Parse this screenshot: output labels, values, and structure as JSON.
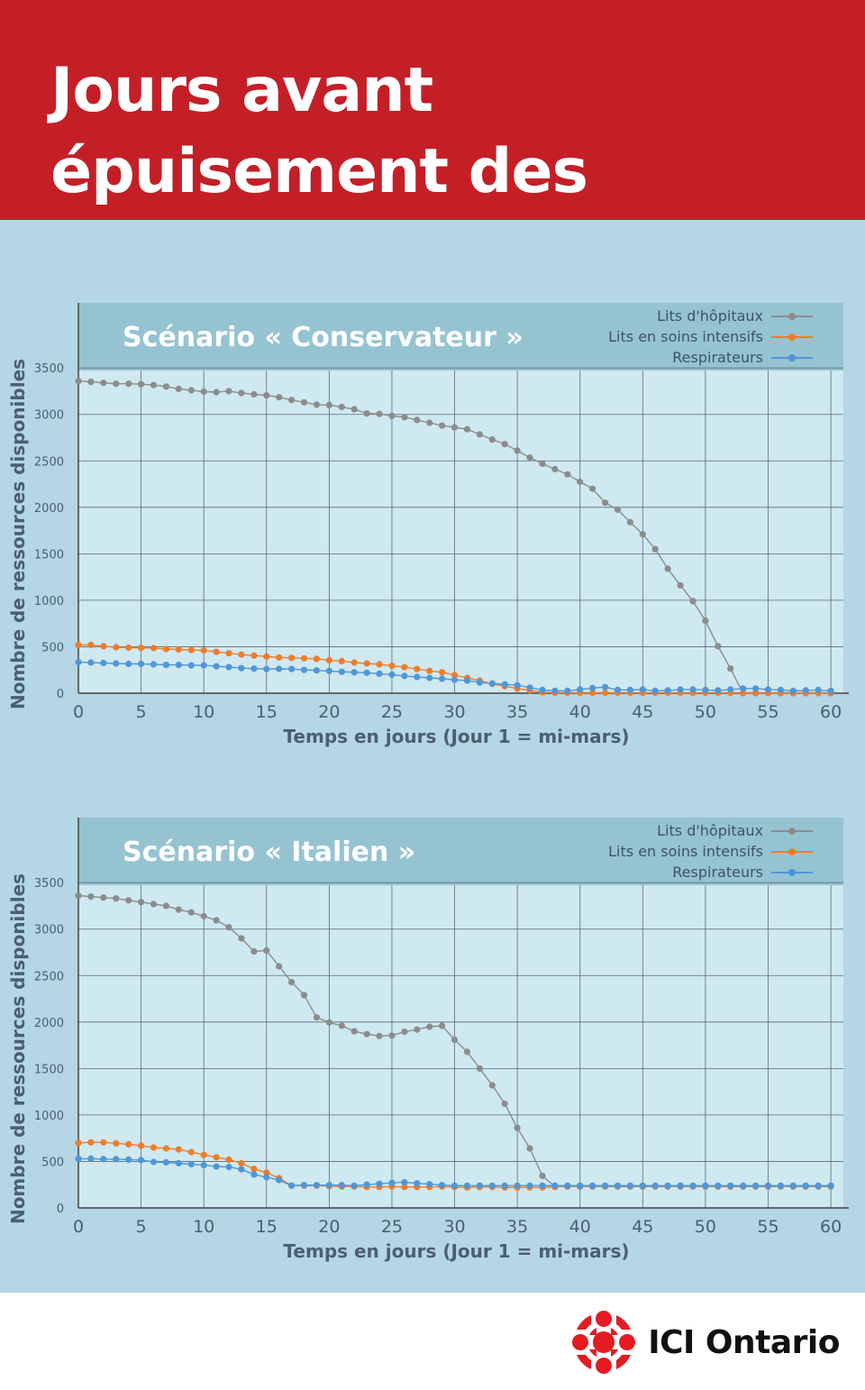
{
  "header": {
    "title": "Jours avant épuisement des ressources"
  },
  "colors": {
    "header_bg": "#c41f27",
    "page_bg": "#b4d6e5",
    "plot_bg": "#cfe9f1",
    "title_band": "#96c3d1",
    "hospital": "#8c8c8c",
    "icu": "#f07c2a",
    "ventilators": "#4e97d8",
    "axis_text": "#4a5f70"
  },
  "logo": {
    "text": "ICI Ontario",
    "icon": "radio-canada-gem-icon"
  },
  "chart_data": [
    {
      "type": "line",
      "title": "Scénario « Conservateur »",
      "xlabel": "Temps en jours (Jour 1 = mi-mars)",
      "ylabel": "Nombre de ressources disponibles",
      "xlim": [
        0,
        61
      ],
      "ylim": [
        0,
        4200
      ],
      "xticks": [
        0,
        5,
        10,
        15,
        20,
        25,
        30,
        35,
        40,
        45,
        50,
        55,
        60
      ],
      "yticks": [
        0,
        500,
        1000,
        1500,
        2000,
        2500,
        3000,
        3500
      ],
      "grid": true,
      "legend": "top-right",
      "x": [
        0,
        1,
        2,
        3,
        4,
        5,
        6,
        7,
        8,
        9,
        10,
        11,
        12,
        13,
        14,
        15,
        16,
        17,
        18,
        19,
        20,
        21,
        22,
        23,
        24,
        25,
        26,
        27,
        28,
        29,
        30,
        31,
        32,
        33,
        34,
        35,
        36,
        37,
        38,
        39,
        40,
        41,
        42,
        43,
        44,
        45,
        46,
        47,
        48,
        49,
        50,
        51,
        52,
        53,
        54,
        55,
        56,
        57,
        58,
        59,
        60
      ],
      "series": [
        {
          "name": "Lits d'hôpitaux",
          "color": "#8c8c8c",
          "values": [
            3360,
            3350,
            3340,
            3330,
            3330,
            3325,
            3315,
            3300,
            3275,
            3260,
            3245,
            3240,
            3250,
            3230,
            3215,
            3205,
            3185,
            3155,
            3130,
            3105,
            3100,
            3080,
            3055,
            3010,
            3005,
            2985,
            2970,
            2940,
            2910,
            2880,
            2860,
            2840,
            2785,
            2730,
            2680,
            2610,
            2535,
            2470,
            2410,
            2355,
            2275,
            2200,
            2050,
            1975,
            1840,
            1710,
            1550,
            1340,
            1160,
            990,
            780,
            505,
            265,
            0,
            0,
            0,
            0,
            0,
            0,
            0,
            0
          ]
        },
        {
          "name": "Lits en soins intensifs",
          "color": "#f07c2a",
          "values": [
            520,
            520,
            505,
            495,
            490,
            488,
            485,
            475,
            470,
            465,
            460,
            445,
            430,
            415,
            405,
            395,
            385,
            380,
            375,
            370,
            355,
            345,
            330,
            320,
            310,
            295,
            280,
            260,
            240,
            225,
            195,
            165,
            135,
            100,
            75,
            50,
            30,
            10,
            5,
            5,
            5,
            5,
            5,
            5,
            5,
            5,
            5,
            5,
            5,
            5,
            5,
            5,
            5,
            5,
            5,
            5,
            5,
            5,
            5,
            5,
            5
          ]
        },
        {
          "name": "Respirateurs",
          "color": "#4e97d8",
          "values": [
            335,
            330,
            325,
            320,
            315,
            315,
            310,
            305,
            305,
            300,
            300,
            290,
            280,
            270,
            265,
            260,
            262,
            260,
            250,
            245,
            240,
            230,
            225,
            220,
            210,
            200,
            185,
            175,
            165,
            155,
            145,
            135,
            115,
            105,
            95,
            85,
            60,
            35,
            25,
            25,
            40,
            55,
            65,
            35,
            35,
            40,
            25,
            30,
            40,
            40,
            35,
            30,
            40,
            50,
            50,
            40,
            35,
            25,
            30,
            35,
            25
          ]
        }
      ]
    },
    {
      "type": "line",
      "title": "Scénario « Italien »",
      "xlabel": "Temps en jours (Jour 1 = mi-mars)",
      "ylabel": "Nombre de ressources disponibles",
      "xlim": [
        0,
        61
      ],
      "ylim": [
        0,
        4200
      ],
      "xticks": [
        0,
        5,
        10,
        15,
        20,
        25,
        30,
        35,
        40,
        45,
        50,
        55,
        60
      ],
      "yticks": [
        0,
        500,
        1000,
        1500,
        2000,
        2500,
        3000,
        3500
      ],
      "grid": true,
      "legend": "top-right",
      "x": [
        0,
        1,
        2,
        3,
        4,
        5,
        6,
        7,
        8,
        9,
        10,
        11,
        12,
        13,
        14,
        15,
        16,
        17,
        18,
        19,
        20,
        21,
        22,
        23,
        24,
        25,
        26,
        27,
        28,
        29,
        30,
        31,
        32,
        33,
        34,
        35,
        36,
        37,
        38,
        39,
        40,
        41,
        42,
        43,
        44,
        45,
        46,
        47,
        48,
        49,
        50,
        51,
        52,
        53,
        54,
        55,
        56,
        57,
        58,
        59,
        60
      ],
      "series": [
        {
          "name": "Lits d'hôpitaux",
          "color": "#8c8c8c",
          "values": [
            3360,
            3350,
            3340,
            3330,
            3310,
            3290,
            3270,
            3250,
            3210,
            3180,
            3140,
            3095,
            3020,
            2900,
            2760,
            2770,
            2600,
            2430,
            2290,
            2050,
            1995,
            1960,
            1900,
            1870,
            1850,
            1855,
            1895,
            1920,
            1950,
            1960,
            1810,
            1680,
            1500,
            1320,
            1120,
            860,
            640,
            345,
            230,
            230,
            230,
            230,
            230,
            230,
            230,
            230,
            230,
            230,
            230,
            230,
            230,
            230,
            230,
            230,
            230,
            230,
            230,
            230,
            230,
            230,
            230
          ]
        },
        {
          "name": "Lits en soins intensifs",
          "color": "#f07c2a",
          "values": [
            700,
            705,
            705,
            695,
            685,
            670,
            650,
            640,
            630,
            600,
            570,
            545,
            520,
            480,
            420,
            380,
            320,
            240,
            240,
            240,
            235,
            230,
            230,
            225,
            225,
            230,
            225,
            225,
            225,
            230,
            225,
            220,
            225,
            225,
            220,
            220,
            220,
            220,
            225,
            235,
            235,
            235,
            235,
            235,
            235,
            235,
            235,
            235,
            235,
            235,
            235,
            235,
            235,
            235,
            235,
            235,
            235,
            235,
            235,
            235,
            235
          ]
        },
        {
          "name": "Respirateurs",
          "color": "#4e97d8",
          "values": [
            530,
            530,
            525,
            525,
            520,
            515,
            495,
            490,
            480,
            470,
            460,
            445,
            440,
            415,
            360,
            330,
            300,
            240,
            245,
            245,
            245,
            245,
            240,
            250,
            260,
            270,
            275,
            265,
            255,
            245,
            240,
            240,
            240,
            240,
            240,
            240,
            240,
            240,
            240,
            240,
            240,
            240,
            240,
            240,
            240,
            240,
            240,
            240,
            240,
            240,
            240,
            240,
            240,
            240,
            240,
            240,
            240,
            240,
            240,
            240,
            240
          ]
        }
      ]
    }
  ]
}
